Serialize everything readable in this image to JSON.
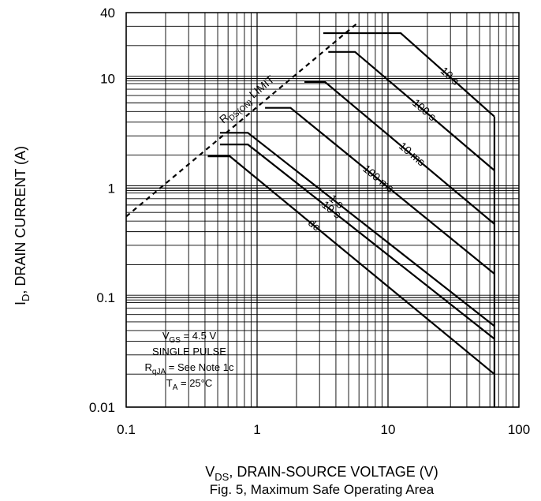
{
  "chart_data": {
    "type": "line",
    "title": "Fig. 5, Maximum Safe Operating Area",
    "xlabel": {
      "main": "V",
      "sub": "DS",
      "rest": ", DRAIN-SOURCE VOLTAGE (V)"
    },
    "ylabel": {
      "main": "I",
      "sub": "D",
      "rest": ", DRAIN CURRENT (A)"
    },
    "xscale": "log",
    "yscale": "log",
    "xlim": [
      0.1,
      100
    ],
    "ylim": [
      0.01,
      40
    ],
    "x_ticks": [
      {
        "value": 0.1,
        "label": "0.1"
      },
      {
        "value": 1,
        "label": "1"
      },
      {
        "value": 10,
        "label": "10"
      },
      {
        "value": 100,
        "label": "100"
      }
    ],
    "y_ticks": [
      {
        "value": 0.01,
        "label": "0.01"
      },
      {
        "value": 0.1,
        "label": "0.1"
      },
      {
        "value": 1,
        "label": "1"
      },
      {
        "value": 10,
        "label": "10"
      },
      {
        "value": 40,
        "label": "40"
      }
    ],
    "grid": true,
    "rds_limit": {
      "label": {
        "main": "R",
        "sub": "DS(ON)",
        "rest": " LIMIT"
      },
      "points": [
        [
          0.1,
          0.55
        ],
        [
          6,
          33
        ]
      ],
      "style": "dashed"
    },
    "vmax": 65,
    "series": [
      {
        "label": "10 s",
        "points": [
          [
            3.2,
            26
          ],
          [
            12.5,
            26
          ],
          [
            65,
            4.5
          ]
        ]
      },
      {
        "label": "100 s",
        "points": [
          [
            3.5,
            17.5
          ],
          [
            5.6,
            17.5
          ],
          [
            65,
            1.45
          ]
        ]
      },
      {
        "label": "10 ms",
        "points": [
          [
            2.3,
            9.3
          ],
          [
            3.3,
            9.3
          ],
          [
            65,
            0.47
          ]
        ]
      },
      {
        "label": "100 ms",
        "points": [
          [
            1.15,
            5.4
          ],
          [
            1.8,
            5.4
          ],
          [
            65,
            0.165
          ]
        ]
      },
      {
        "label": "1 s",
        "points": [
          [
            0.52,
            3.2
          ],
          [
            0.85,
            3.2
          ],
          [
            65,
            0.055
          ]
        ]
      },
      {
        "label": "10 s",
        "points": [
          [
            0.52,
            2.5
          ],
          [
            0.85,
            2.5
          ],
          [
            65,
            0.042
          ]
        ]
      },
      {
        "label": "dc",
        "points": [
          [
            0.42,
            1.95
          ],
          [
            0.62,
            1.95
          ],
          [
            65,
            0.02
          ]
        ]
      }
    ],
    "notes": [
      {
        "main": "V",
        "sub": "GS",
        "rest": " = 4.5 V"
      },
      {
        "main": "SINGLE PULSE",
        "sub": "",
        "rest": ""
      },
      {
        "main": "R",
        "sub": "qJA",
        "rest": " = See Note 1c"
      },
      {
        "main": "T",
        "sub": "A",
        "rest": " = 25°C"
      }
    ]
  }
}
